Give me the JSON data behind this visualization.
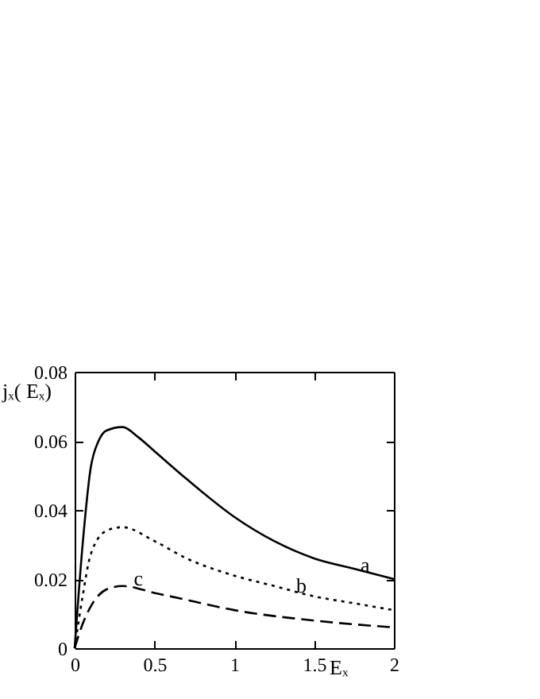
{
  "chart_data": {
    "type": "line",
    "xlabel": "Eₓ",
    "ylabel": "jₓ( Eₓ)",
    "xlim": [
      0,
      2
    ],
    "ylim": [
      0,
      0.08
    ],
    "xticks": [
      0,
      0.5,
      1,
      1.5,
      2
    ],
    "yticks": [
      0,
      0.02,
      0.04,
      0.06,
      0.08
    ],
    "grid": false,
    "series": [
      {
        "color": "#000000",
        "line_style": "solid",
        "x": [
          0,
          0.05,
          0.1,
          0.15,
          0.2,
          0.3,
          0.4,
          0.5,
          0.7,
          1,
          1.25,
          1.5,
          1.75,
          2
        ],
        "values": [
          0,
          0.03,
          0.052,
          0.06,
          0.063,
          0.064,
          0.061,
          0.057,
          0.049,
          0.038,
          0.031,
          0.026,
          0.023,
          0.02
        ]
      },
      {
        "color": "#000000",
        "line_style": "dotted",
        "x": [
          0,
          0.05,
          0.1,
          0.2,
          0.3,
          0.5,
          0.7,
          1,
          1.25,
          1.5,
          1.75,
          2
        ],
        "values": [
          0,
          0.015,
          0.027,
          0.034,
          0.035,
          0.031,
          0.026,
          0.021,
          0.018,
          0.015,
          0.013,
          0.011
        ]
      },
      {
        "color": "#000000",
        "line_style": "dashed",
        "x": [
          0,
          0.05,
          0.1,
          0.2,
          0.3,
          0.5,
          0.7,
          1,
          1.5,
          2
        ],
        "values": [
          0,
          0.007,
          0.012,
          0.017,
          0.018,
          0.016,
          0.014,
          0.011,
          0.008,
          0.006
        ]
      }
    ],
    "annotations": [
      {
        "text": "a",
        "x": 1.82,
        "y": 0.024
      },
      {
        "text": "b",
        "x": 1.42,
        "y": 0.018
      },
      {
        "text": "c",
        "x": 0.4,
        "y": 0.02
      }
    ]
  }
}
